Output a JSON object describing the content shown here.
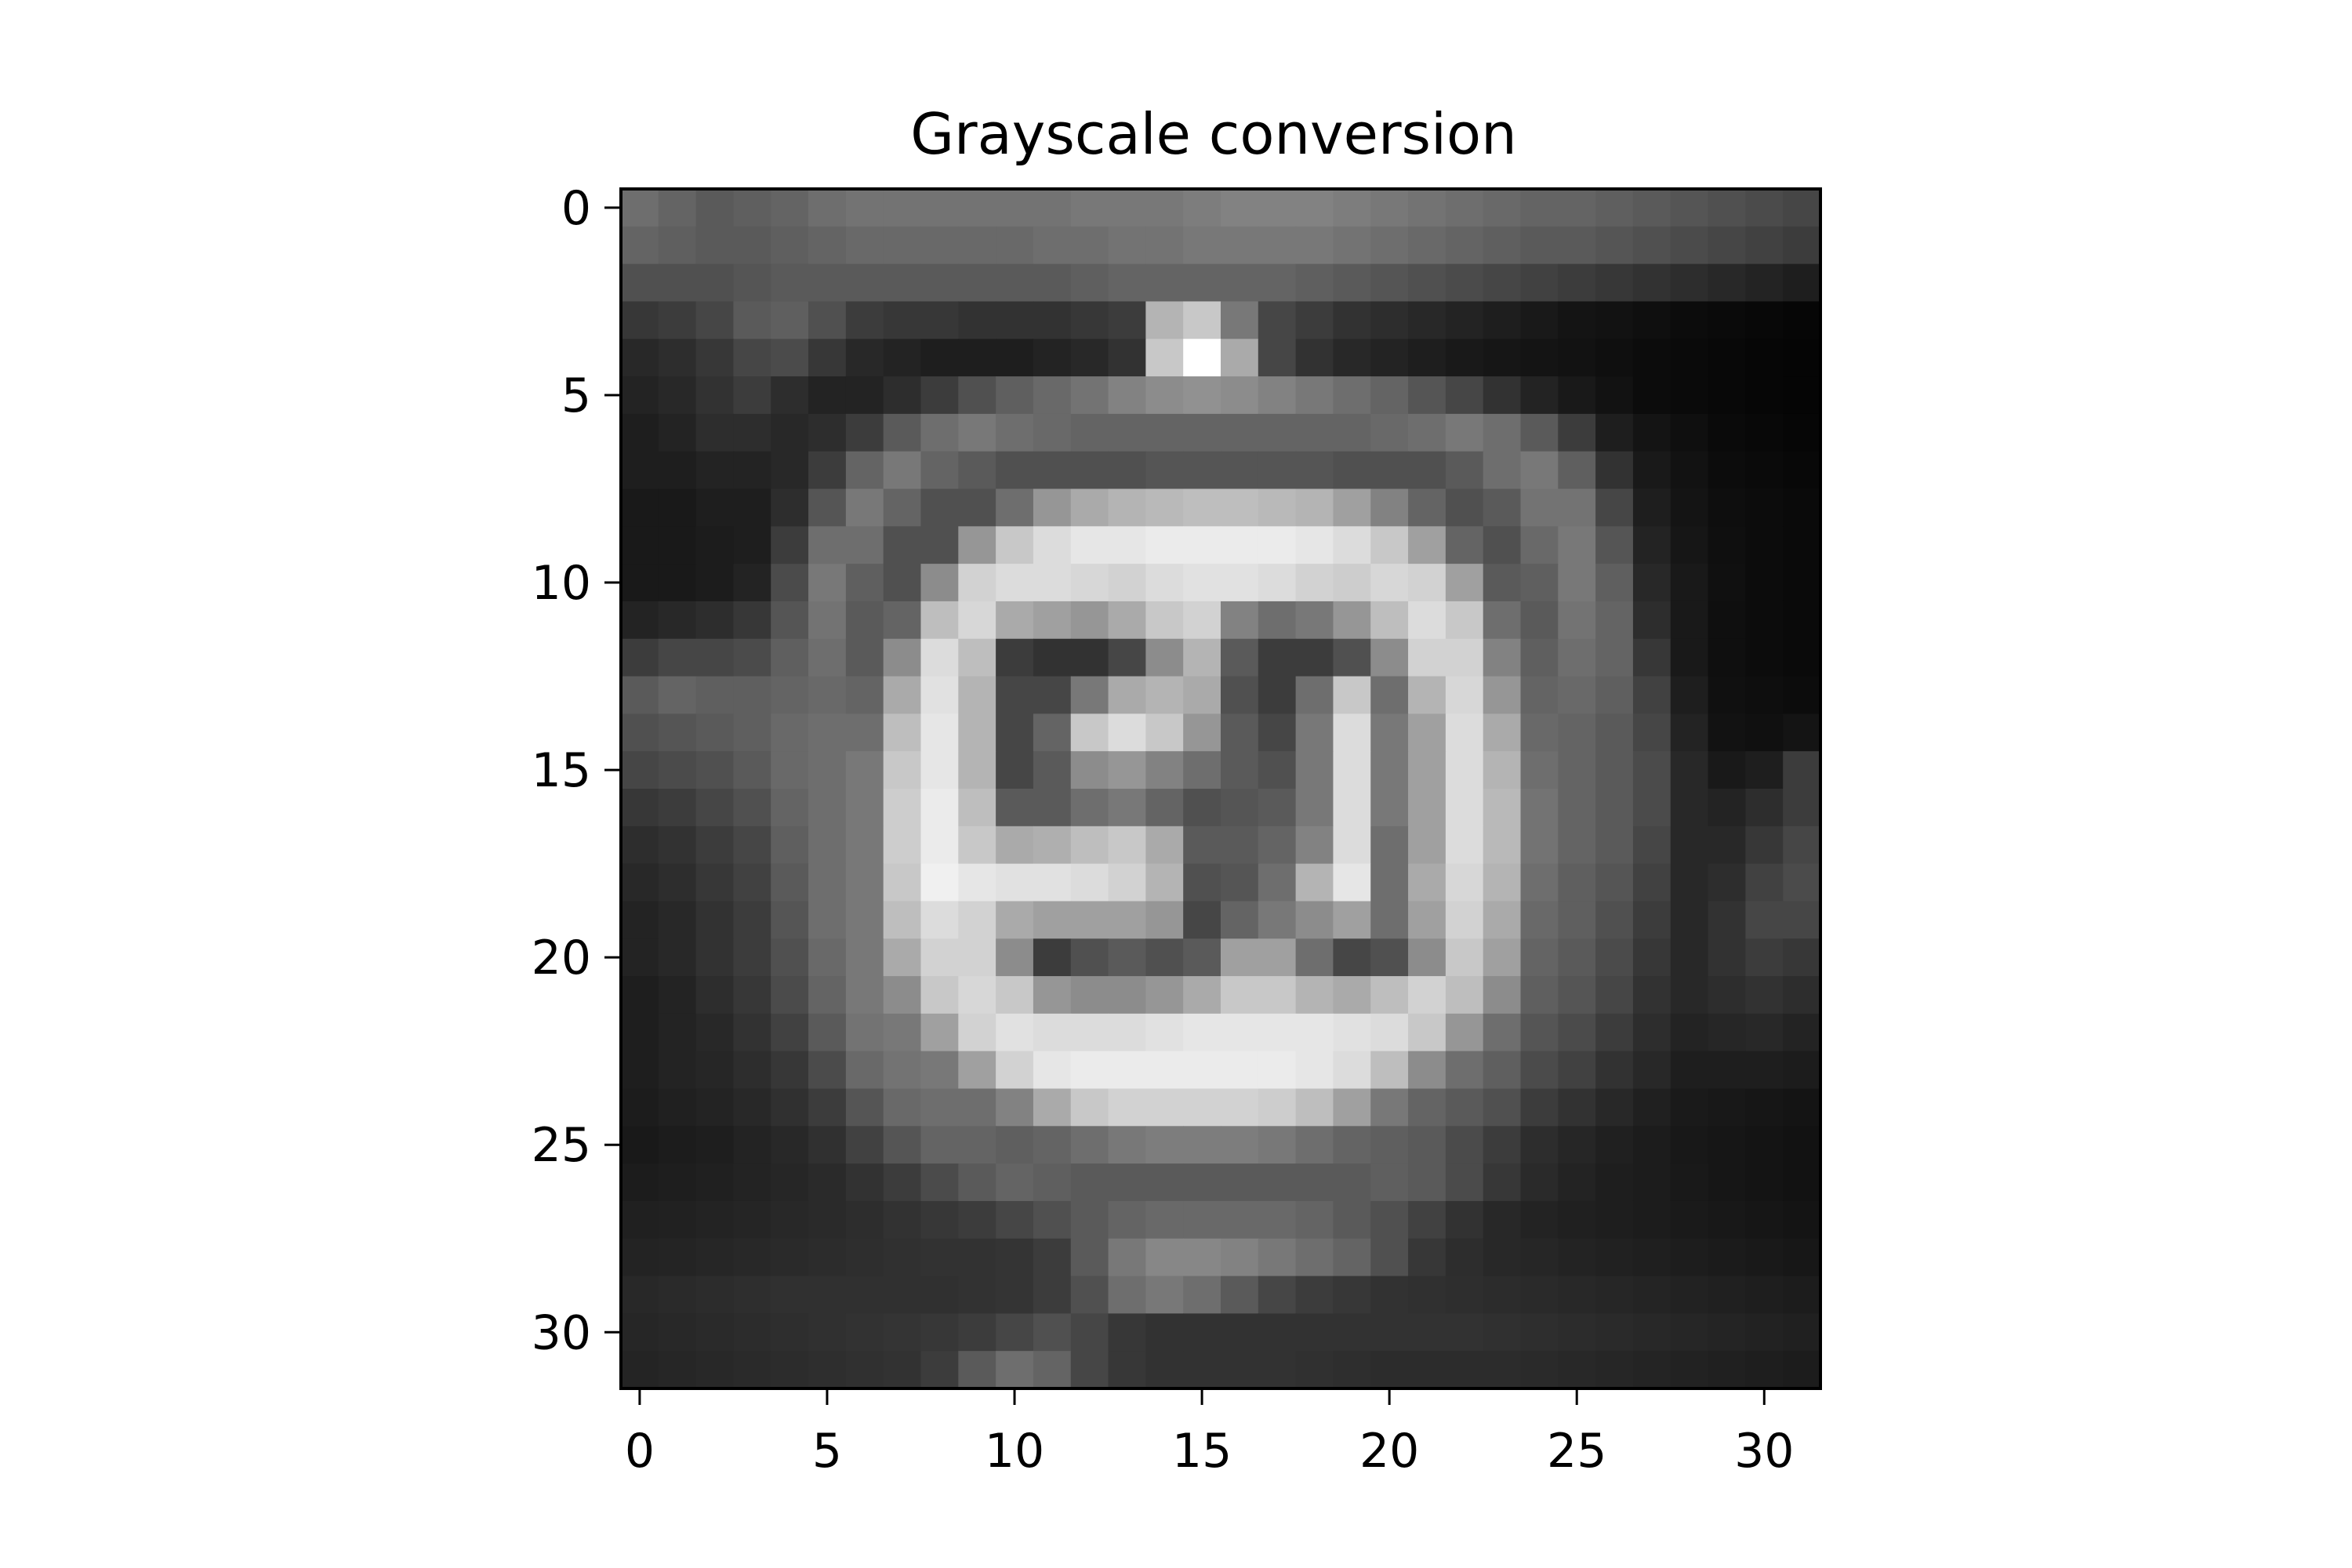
{
  "chart_data": {
    "type": "heatmap",
    "title": "Grayscale conversion",
    "xlabel": "",
    "ylabel": "",
    "colormap": "gray",
    "value_range": [
      0,
      255
    ],
    "xlim": [
      -0.5,
      31.5
    ],
    "ylim": [
      31.5,
      -0.5
    ],
    "x_ticks": [
      0,
      5,
      10,
      15,
      20,
      25,
      30
    ],
    "y_ticks": [
      0,
      5,
      10,
      15,
      20,
      25,
      30
    ],
    "x_tick_labels": [
      "0",
      "5",
      "10",
      "15",
      "20",
      "25",
      "30"
    ],
    "y_tick_labels": [
      "0",
      "5",
      "10",
      "15",
      "20",
      "25",
      "30"
    ],
    "grid": false,
    "rows": 32,
    "cols": 32,
    "values": [
      [
        110,
        100,
        90,
        95,
        100,
        110,
        115,
        115,
        115,
        115,
        115,
        115,
        120,
        120,
        120,
        125,
        130,
        130,
        130,
        125,
        120,
        115,
        110,
        105,
        100,
        100,
        95,
        90,
        85,
        80,
        75,
        70
      ],
      [
        100,
        95,
        90,
        90,
        95,
        100,
        105,
        105,
        105,
        105,
        105,
        110,
        110,
        115,
        115,
        120,
        120,
        120,
        120,
        115,
        110,
        105,
        100,
        95,
        90,
        90,
        85,
        80,
        75,
        70,
        65,
        60
      ],
      [
        80,
        80,
        80,
        85,
        90,
        90,
        90,
        90,
        90,
        90,
        90,
        90,
        95,
        100,
        100,
        100,
        100,
        100,
        95,
        90,
        85,
        80,
        75,
        70,
        65,
        60,
        55,
        50,
        45,
        40,
        35,
        30
      ],
      [
        55,
        60,
        70,
        90,
        95,
        80,
        60,
        55,
        55,
        50,
        50,
        50,
        55,
        60,
        180,
        200,
        120,
        70,
        60,
        50,
        45,
        40,
        35,
        30,
        25,
        20,
        18,
        15,
        12,
        10,
        8,
        6
      ],
      [
        40,
        45,
        55,
        70,
        75,
        55,
        40,
        35,
        30,
        30,
        30,
        35,
        40,
        50,
        200,
        255,
        170,
        70,
        50,
        40,
        35,
        30,
        25,
        22,
        20,
        18,
        15,
        12,
        10,
        8,
        6,
        5
      ],
      [
        35,
        40,
        50,
        60,
        45,
        35,
        35,
        45,
        60,
        80,
        95,
        105,
        115,
        130,
        140,
        145,
        140,
        130,
        120,
        110,
        100,
        85,
        70,
        50,
        35,
        25,
        18,
        12,
        10,
        8,
        6,
        5
      ],
      [
        30,
        35,
        45,
        45,
        40,
        45,
        60,
        90,
        110,
        120,
        110,
        105,
        100,
        100,
        100,
        100,
        100,
        100,
        100,
        100,
        105,
        110,
        120,
        110,
        90,
        60,
        30,
        20,
        15,
        10,
        8,
        6
      ],
      [
        30,
        30,
        35,
        35,
        40,
        60,
        100,
        120,
        100,
        90,
        80,
        80,
        80,
        80,
        85,
        85,
        85,
        85,
        85,
        80,
        80,
        80,
        90,
        110,
        120,
        95,
        50,
        25,
        18,
        12,
        10,
        8
      ],
      [
        25,
        25,
        30,
        30,
        45,
        85,
        120,
        100,
        80,
        80,
        110,
        150,
        170,
        180,
        185,
        190,
        190,
        185,
        180,
        160,
        130,
        100,
        80,
        90,
        115,
        115,
        70,
        30,
        20,
        14,
        12,
        10
      ],
      [
        25,
        25,
        28,
        30,
        60,
        110,
        110,
        80,
        80,
        150,
        200,
        220,
        230,
        230,
        235,
        235,
        235,
        235,
        230,
        220,
        200,
        160,
        100,
        80,
        105,
        120,
        85,
        35,
        22,
        15,
        12,
        10
      ],
      [
        25,
        25,
        28,
        35,
        75,
        120,
        95,
        80,
        140,
        210,
        220,
        220,
        215,
        210,
        220,
        225,
        225,
        220,
        210,
        205,
        215,
        210,
        160,
        90,
        95,
        120,
        95,
        40,
        25,
        16,
        12,
        10
      ],
      [
        35,
        40,
        45,
        55,
        85,
        115,
        90,
        100,
        190,
        215,
        170,
        160,
        150,
        170,
        200,
        210,
        130,
        110,
        120,
        150,
        190,
        220,
        200,
        110,
        90,
        115,
        100,
        45,
        25,
        15,
        12,
        10
      ],
      [
        60,
        70,
        70,
        75,
        95,
        110,
        90,
        140,
        220,
        190,
        60,
        50,
        50,
        70,
        140,
        180,
        90,
        60,
        60,
        80,
        140,
        210,
        210,
        130,
        95,
        110,
        100,
        55,
        25,
        15,
        12,
        10
      ],
      [
        90,
        100,
        95,
        95,
        100,
        105,
        100,
        170,
        225,
        180,
        70,
        70,
        120,
        170,
        180,
        170,
        80,
        60,
        110,
        200,
        110,
        180,
        215,
        150,
        100,
        105,
        95,
        65,
        30,
        16,
        14,
        12
      ],
      [
        80,
        85,
        90,
        95,
        105,
        110,
        110,
        190,
        230,
        180,
        70,
        100,
        200,
        220,
        200,
        150,
        90,
        70,
        120,
        220,
        120,
        160,
        220,
        170,
        105,
        100,
        90,
        70,
        35,
        18,
        16,
        20
      ],
      [
        70,
        75,
        80,
        90,
        105,
        110,
        120,
        200,
        230,
        180,
        70,
        90,
        140,
        150,
        130,
        110,
        90,
        80,
        120,
        220,
        120,
        160,
        220,
        180,
        110,
        100,
        90,
        75,
        40,
        25,
        30,
        60
      ],
      [
        55,
        60,
        70,
        80,
        100,
        110,
        120,
        205,
        235,
        190,
        90,
        90,
        110,
        120,
        100,
        80,
        85,
        90,
        120,
        220,
        120,
        160,
        220,
        185,
        115,
        100,
        90,
        75,
        40,
        35,
        45,
        60
      ],
      [
        45,
        50,
        60,
        70,
        95,
        110,
        120,
        205,
        235,
        200,
        170,
        175,
        190,
        200,
        170,
        90,
        90,
        100,
        130,
        220,
        110,
        160,
        220,
        185,
        115,
        100,
        90,
        70,
        40,
        40,
        55,
        70
      ],
      [
        40,
        45,
        55,
        65,
        90,
        110,
        120,
        200,
        240,
        230,
        225,
        225,
        220,
        210,
        180,
        80,
        85,
        110,
        180,
        230,
        110,
        170,
        215,
        180,
        110,
        95,
        85,
        65,
        40,
        45,
        65,
        75
      ],
      [
        35,
        40,
        50,
        60,
        85,
        110,
        120,
        190,
        220,
        210,
        170,
        160,
        160,
        160,
        150,
        70,
        100,
        120,
        140,
        160,
        110,
        160,
        210,
        170,
        105,
        95,
        80,
        60,
        40,
        50,
        70,
        70
      ],
      [
        35,
        40,
        50,
        60,
        80,
        105,
        120,
        170,
        210,
        210,
        140,
        60,
        80,
        90,
        80,
        90,
        160,
        160,
        110,
        70,
        80,
        140,
        200,
        160,
        100,
        90,
        75,
        55,
        40,
        50,
        60,
        55
      ],
      [
        30,
        35,
        45,
        55,
        75,
        100,
        120,
        140,
        200,
        215,
        200,
        150,
        140,
        140,
        150,
        170,
        200,
        200,
        180,
        170,
        190,
        210,
        190,
        140,
        95,
        85,
        70,
        50,
        40,
        45,
        50,
        45
      ],
      [
        30,
        35,
        40,
        50,
        65,
        90,
        115,
        120,
        160,
        210,
        225,
        220,
        220,
        220,
        225,
        230,
        230,
        230,
        230,
        225,
        220,
        200,
        150,
        110,
        85,
        75,
        60,
        45,
        35,
        38,
        40,
        35
      ],
      [
        30,
        35,
        38,
        45,
        55,
        75,
        105,
        115,
        120,
        160,
        210,
        230,
        235,
        235,
        235,
        235,
        235,
        235,
        230,
        220,
        190,
        140,
        110,
        95,
        75,
        65,
        50,
        40,
        30,
        30,
        30,
        28
      ],
      [
        28,
        32,
        35,
        40,
        48,
        60,
        85,
        105,
        110,
        110,
        130,
        170,
        200,
        210,
        210,
        210,
        210,
        205,
        190,
        160,
        120,
        100,
        90,
        80,
        60,
        50,
        40,
        32,
        26,
        24,
        22,
        20
      ],
      [
        25,
        28,
        30,
        35,
        40,
        48,
        65,
        85,
        100,
        100,
        95,
        100,
        110,
        120,
        125,
        125,
        125,
        120,
        110,
        100,
        95,
        90,
        75,
        60,
        45,
        38,
        32,
        28,
        24,
        22,
        20,
        18
      ],
      [
        28,
        30,
        32,
        35,
        38,
        42,
        50,
        60,
        75,
        90,
        100,
        95,
        90,
        90,
        90,
        90,
        90,
        90,
        90,
        90,
        95,
        90,
        75,
        55,
        42,
        35,
        30,
        28,
        25,
        22,
        20,
        18
      ],
      [
        32,
        33,
        35,
        37,
        40,
        42,
        45,
        50,
        55,
        60,
        70,
        80,
        90,
        100,
        105,
        105,
        105,
        105,
        100,
        90,
        80,
        65,
        50,
        40,
        35,
        32,
        30,
        28,
        26,
        24,
        22,
        20
      ],
      [
        35,
        36,
        38,
        40,
        42,
        44,
        46,
        48,
        50,
        50,
        52,
        60,
        90,
        120,
        135,
        135,
        130,
        120,
        110,
        100,
        80,
        55,
        45,
        40,
        38,
        35,
        33,
        31,
        29,
        27,
        25,
        23
      ],
      [
        40,
        42,
        44,
        46,
        48,
        48,
        48,
        48,
        48,
        50,
        52,
        60,
        80,
        110,
        120,
        110,
        90,
        70,
        60,
        55,
        50,
        48,
        46,
        44,
        42,
        40,
        38,
        36,
        34,
        32,
        30,
        28
      ],
      [
        38,
        40,
        42,
        44,
        46,
        48,
        50,
        52,
        55,
        60,
        70,
        80,
        70,
        55,
        50,
        50,
        50,
        50,
        50,
        50,
        50,
        50,
        50,
        48,
        46,
        44,
        42,
        40,
        38,
        36,
        34,
        32
      ],
      [
        36,
        38,
        40,
        42,
        44,
        46,
        48,
        50,
        60,
        90,
        110,
        100,
        70,
        55,
        50,
        50,
        50,
        50,
        48,
        46,
        44,
        44,
        44,
        44,
        42,
        40,
        38,
        36,
        34,
        32,
        30,
        28
      ]
    ]
  }
}
